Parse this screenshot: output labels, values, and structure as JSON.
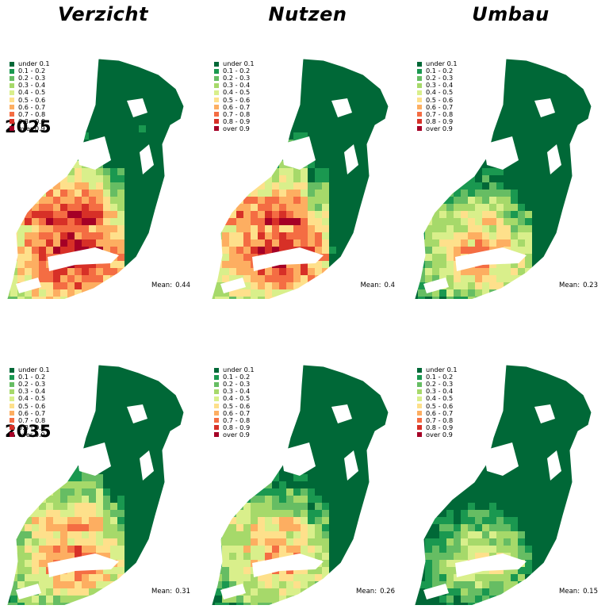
{
  "columns": [
    {
      "title": "Verzicht"
    },
    {
      "title": "Nutzen"
    },
    {
      "title": "Umbau"
    }
  ],
  "rows": [
    {
      "title": "2025"
    },
    {
      "title": "2035"
    }
  ],
  "legend": {
    "items": [
      {
        "label": "under 0.1",
        "color": "#006837"
      },
      {
        "label": "0.1 - 0.2",
        "color": "#1a9850"
      },
      {
        "label": "0.2 - 0.3",
        "color": "#66bd63"
      },
      {
        "label": "0.3 - 0.4",
        "color": "#a6d96a"
      },
      {
        "label": "0.4 - 0.5",
        "color": "#d9ef8b"
      },
      {
        "label": "0.5 - 0.6",
        "color": "#fee08b"
      },
      {
        "label": "0.6 - 0.7",
        "color": "#fdae61"
      },
      {
        "label": "0.7 - 0.8",
        "color": "#f46d43"
      },
      {
        "label": "0.8 - 0.9",
        "color": "#d73027"
      },
      {
        "label": "over 0.9",
        "color": "#a50026"
      }
    ]
  },
  "mean_label": "Mean:",
  "panels": [
    {
      "scenario": "Verzicht",
      "year": "2025",
      "mean": "0.44"
    },
    {
      "scenario": "Nutzen",
      "year": "2025",
      "mean": "0.4"
    },
    {
      "scenario": "Umbau",
      "year": "2025",
      "mean": "0.23"
    },
    {
      "scenario": "Verzicht",
      "year": "2035",
      "mean": "0.31"
    },
    {
      "scenario": "Nutzen",
      "year": "2035",
      "mean": "0.26"
    },
    {
      "scenario": "Umbau",
      "year": "2035",
      "mean": "0.15"
    }
  ]
}
